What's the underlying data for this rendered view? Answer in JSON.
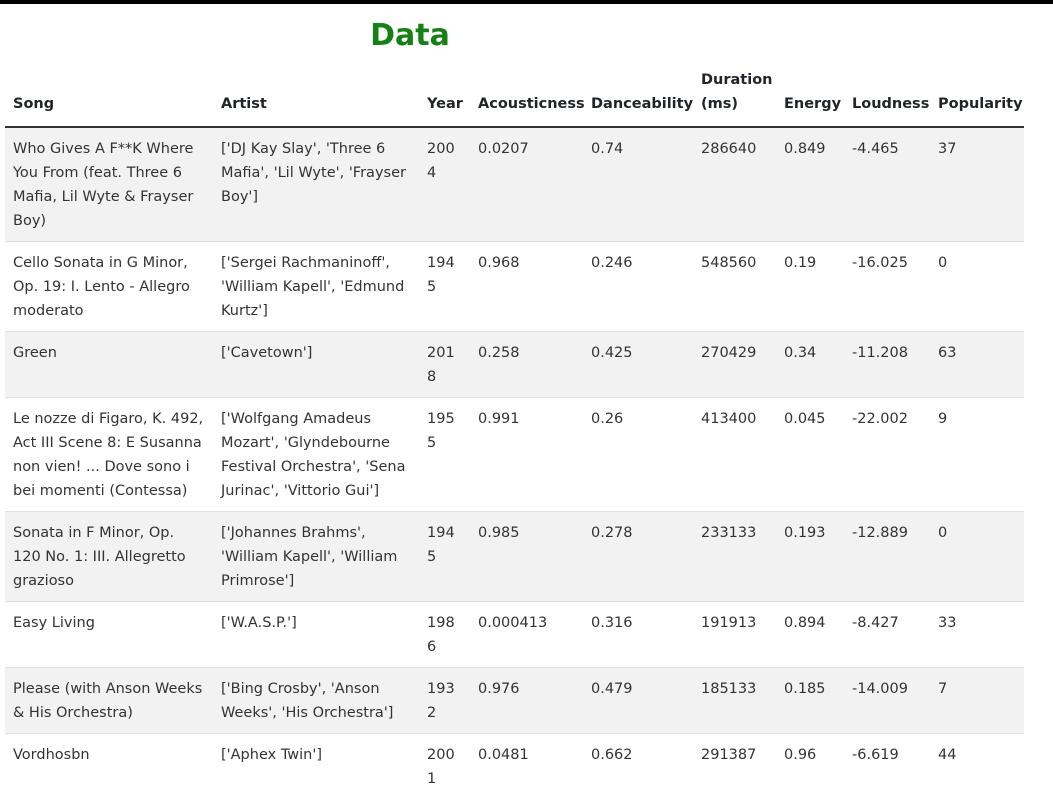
{
  "page": {
    "title": "Data",
    "title_color": "#168014"
  },
  "table": {
    "columns": [
      "Song",
      "Artist",
      "Year",
      "Acousticness",
      "Danceability",
      "Duration (ms)",
      "Energy",
      "Loudness",
      "Popularity"
    ],
    "rows": [
      [
        "Who Gives A F**K Where You From (feat. Three 6 Mafia, Lil Wyte & Frayser Boy)",
        "['DJ Kay Slay', 'Three 6 Mafia', 'Lil Wyte', 'Frayser Boy']",
        "2004",
        "0.0207",
        "0.74",
        "286640",
        "0.849",
        "-4.465",
        "37"
      ],
      [
        "Cello Sonata in G Minor, Op. 19: I. Lento - Allegro moderato",
        "['Sergei Rachmaninoff', 'William Kapell', 'Edmund Kurtz']",
        "1945",
        "0.968",
        "0.246",
        "548560",
        "0.19",
        "-16.025",
        "0"
      ],
      [
        "Green",
        "['Cavetown']",
        "2018",
        "0.258",
        "0.425",
        "270429",
        "0.34",
        "-11.208",
        "63"
      ],
      [
        "Le nozze di Figaro, K. 492, Act III Scene 8: E Susanna non vien! ... Dove sono i bei momenti (Contessa)",
        "['Wolfgang Amadeus Mozart', 'Glyndebourne Festival Orchestra', 'Sena Jurinac', 'Vittorio Gui']",
        "1955",
        "0.991",
        "0.26",
        "413400",
        "0.045",
        "-22.002",
        "9"
      ],
      [
        "Sonata in F Minor, Op. 120 No. 1: III. Allegretto grazioso",
        "['Johannes Brahms', 'William Kapell', 'William Primrose']",
        "1945",
        "0.985",
        "0.278",
        "233133",
        "0.193",
        "-12.889",
        "0"
      ],
      [
        "Easy Living",
        "['W.A.S.P.']",
        "1986",
        "0.000413",
        "0.316",
        "191913",
        "0.894",
        "-8.427",
        "33"
      ],
      [
        "Please (with Anson Weeks & His Orchestra)",
        "['Bing Crosby', 'Anson Weeks', 'His Orchestra']",
        "1932",
        "0.976",
        "0.479",
        "185133",
        "0.185",
        "-14.009",
        "7"
      ],
      [
        "Vordhosbn",
        "['Aphex Twin']",
        "2001",
        "0.0481",
        "0.662",
        "291387",
        "0.96",
        "-6.619",
        "44"
      ]
    ]
  }
}
